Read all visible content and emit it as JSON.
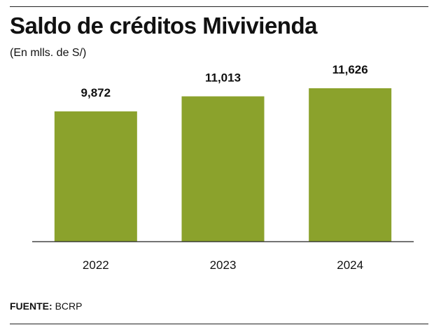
{
  "header": {
    "title": "Saldo de créditos Mivivienda",
    "subtitle": "(En mlls. de S/)"
  },
  "footer": {
    "source_label": "FUENTE:",
    "source_value": "BCRP"
  },
  "colors": {
    "bar": "#8ba22c",
    "text": "#111111",
    "axis": "#222222"
  },
  "chart_data": {
    "type": "bar",
    "title": "Saldo de créditos Mivivienda",
    "subtitle": "(En mlls. de S/)",
    "categories": [
      "2022",
      "2023",
      "2024"
    ],
    "values": [
      9872,
      11013,
      11626
    ],
    "value_labels": [
      "9,872",
      "11,013",
      "11,626"
    ],
    "xlabel": "",
    "ylabel": "",
    "ylim": [
      0,
      12900
    ],
    "grid": false,
    "legend": "none"
  }
}
